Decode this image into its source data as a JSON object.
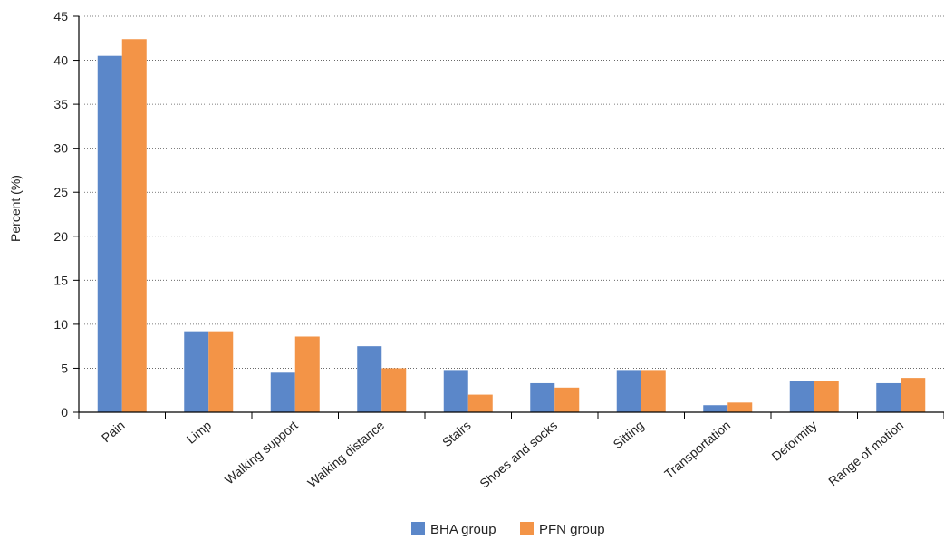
{
  "chart_data": {
    "type": "bar",
    "title": "",
    "xlabel": "",
    "ylabel": "Percent (%)",
    "ylim": [
      0,
      45
    ],
    "yticks": [
      0,
      5,
      10,
      15,
      20,
      25,
      30,
      35,
      40,
      45
    ],
    "grid": "horizontal dotted",
    "legend_position": "bottom",
    "categories": [
      "Pain",
      "Limp",
      "Walking support",
      "Walking distance",
      "Stairs",
      "Shoes and socks",
      "Sitting",
      "Transportation",
      "Deformity",
      "Range of motion"
    ],
    "series": [
      {
        "name": "BHA group",
        "color": "#5b87c9",
        "values": [
          40.5,
          9.2,
          4.5,
          7.5,
          4.8,
          3.3,
          4.8,
          0.8,
          3.6,
          3.3
        ]
      },
      {
        "name": "PFN group",
        "color": "#f39447",
        "values": [
          42.4,
          9.2,
          8.6,
          5.0,
          2.0,
          2.8,
          4.8,
          1.1,
          3.6,
          3.9
        ]
      }
    ]
  }
}
